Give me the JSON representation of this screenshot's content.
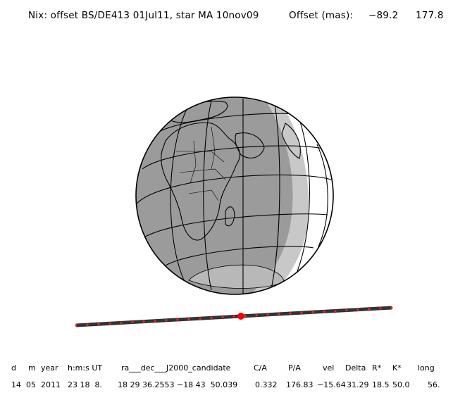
{
  "header": {
    "title": "Nix: offset BS/DE413 01Jul11, star MA 10nov09",
    "offset_label": "Offset (mas):",
    "offset_ra": "−89.2",
    "offset_dec": "177.8"
  },
  "colors": {
    "night_side": "#9b9b9b",
    "twilight": "#c8c8c8",
    "day_side": "#ffffff",
    "track": "#333333",
    "track_dots": "#ff2020",
    "closest_approach": "#ff0000"
  },
  "map": {
    "projection": "orthographic",
    "graticule": true,
    "features": [
      "coastlines",
      "borders"
    ]
  },
  "table": {
    "headers": [
      "d",
      "m",
      "year",
      "h:m:s UT",
      "ra___dec___J2000_candidate",
      "C/A",
      "P/A",
      "vel",
      "Delta",
      "R*",
      "K*",
      "long"
    ],
    "values": [
      "14",
      "05",
      "2011",
      "23 18  8.",
      "18 29 36.2553 −18 43  50.039",
      "0.332",
      "176.83",
      "−15.64",
      "31.29",
      "18.5",
      "50.0",
      "56."
    ]
  }
}
